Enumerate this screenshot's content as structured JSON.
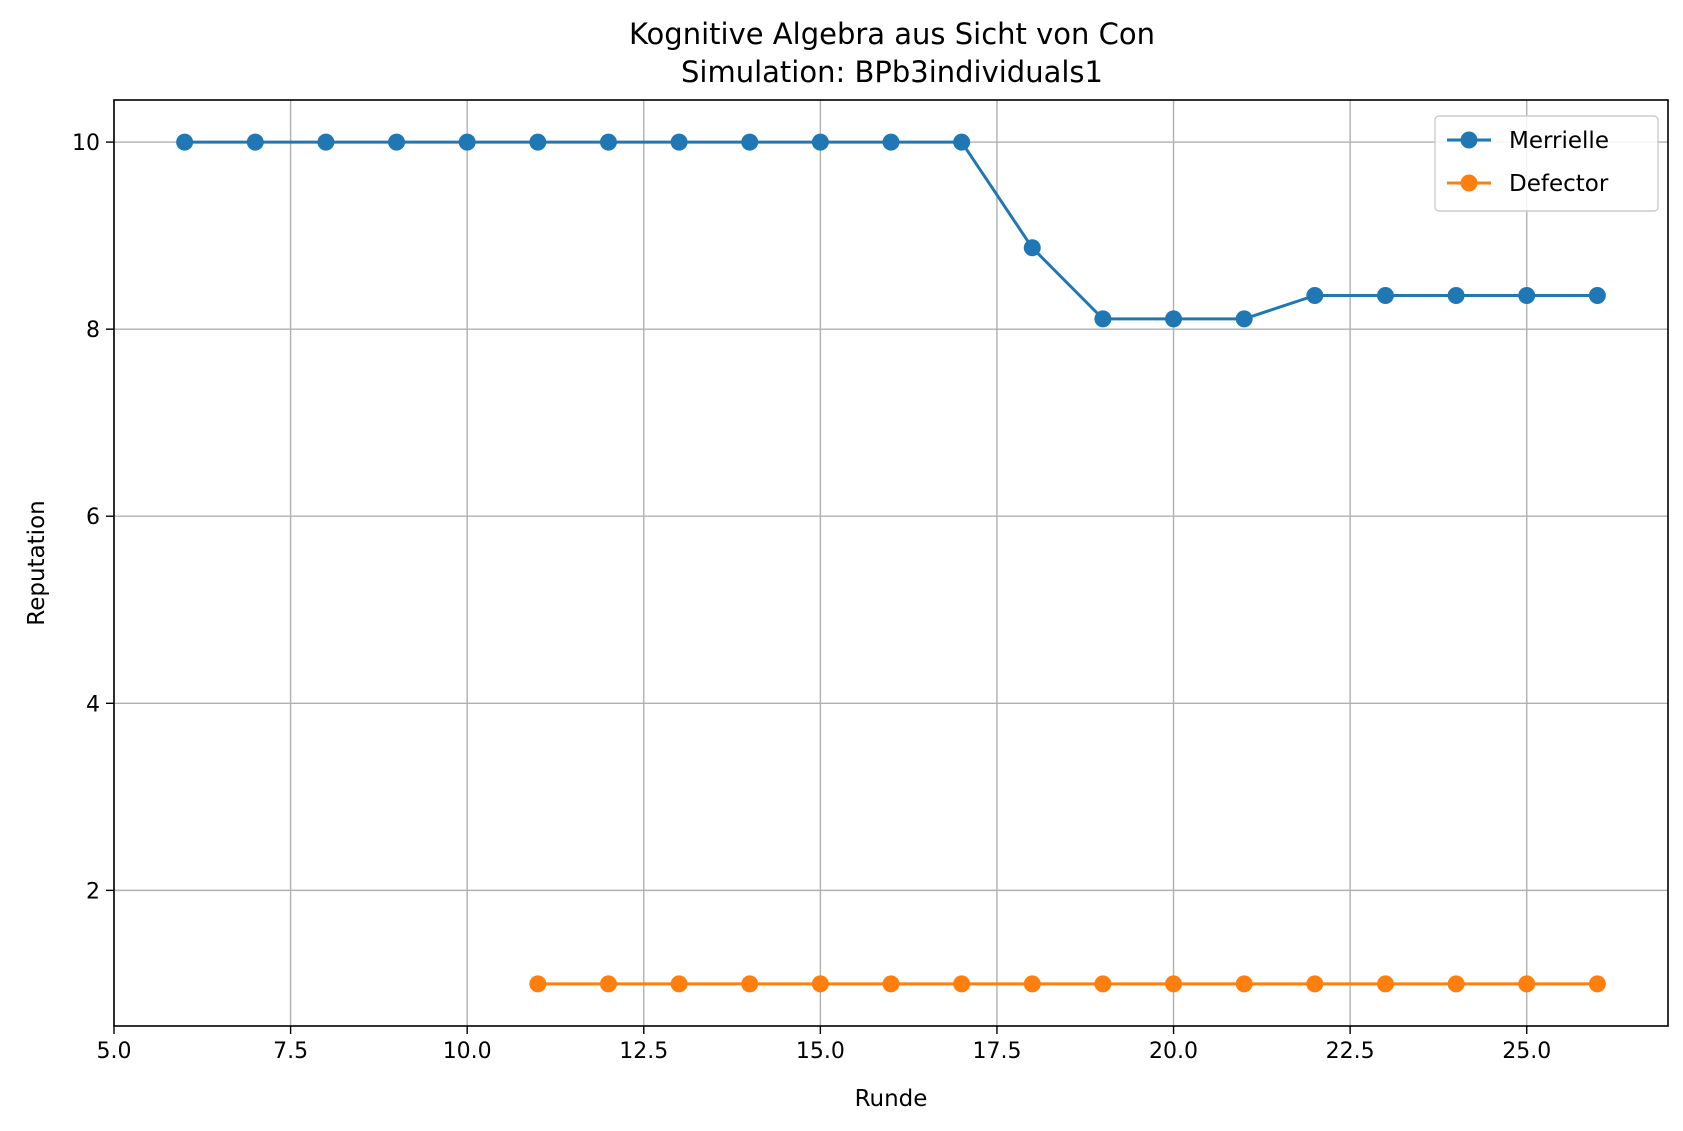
{
  "chart_data": {
    "type": "line",
    "title": "Kognitive Algebra aus Sicht von Con",
    "subtitle": "Simulation: BPb3individuals1",
    "xlabel": "Runde",
    "ylabel": "Reputation",
    "xlim": [
      5.0,
      27.0
    ],
    "ylim": [
      0.55,
      10.45
    ],
    "xticks": [
      5.0,
      7.5,
      10.0,
      12.5,
      15.0,
      17.5,
      20.0,
      22.5,
      25.0
    ],
    "xtick_labels": [
      "5.0",
      "7.5",
      "10.0",
      "12.5",
      "15.0",
      "17.5",
      "20.0",
      "22.5",
      "25.0"
    ],
    "yticks": [
      2,
      4,
      6,
      8,
      10
    ],
    "ytick_labels": [
      "2",
      "4",
      "6",
      "8",
      "10"
    ],
    "grid": true,
    "legend_position": "top-right",
    "series": [
      {
        "name": "Merrielle",
        "color": "#1f77b4",
        "marker": "circle",
        "x": [
          6,
          7,
          8,
          9,
          10,
          11,
          12,
          13,
          14,
          15,
          16,
          17,
          18,
          19,
          20,
          21,
          22,
          23,
          24,
          25,
          26
        ],
        "y": [
          10,
          10,
          10,
          10,
          10,
          10,
          10,
          10,
          10,
          10,
          10,
          10,
          8.87,
          8.11,
          8.11,
          8.11,
          8.36,
          8.36,
          8.36,
          8.36,
          8.36
        ]
      },
      {
        "name": "Defector",
        "color": "#ff7f0e",
        "marker": "circle",
        "x": [
          11,
          12,
          13,
          14,
          15,
          16,
          17,
          18,
          19,
          20,
          21,
          22,
          23,
          24,
          25,
          26
        ],
        "y": [
          1,
          1,
          1,
          1,
          1,
          1,
          1,
          1,
          1,
          1,
          1,
          1,
          1,
          1,
          1,
          1
        ]
      }
    ]
  }
}
